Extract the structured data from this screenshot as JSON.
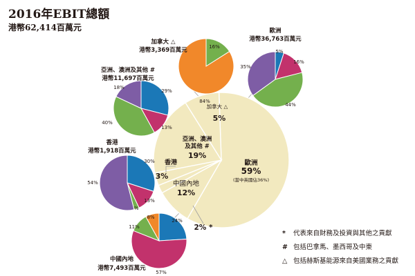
{
  "header": {
    "title": "2016年EBIT總額",
    "subtitle": "港幣62,414百萬元"
  },
  "colors": {
    "cream": "#f2e9bf",
    "orange": "#f1882a",
    "green": "#74b04d",
    "blue": "#1b78b7",
    "purple": "#7e5da5",
    "magenta": "#c2326c",
    "gray_line": "#9f9f9f"
  },
  "chart_data": [
    {
      "type": "pie",
      "role": "main",
      "slices": [
        {
          "label": "歐洲",
          "value": 59,
          "value_label": "59%",
          "note": "(當中英國佔36%)",
          "color": "cream"
        },
        {
          "label": "中國內地",
          "value": 12,
          "value_label": "12%",
          "color": "cream"
        },
        {
          "label": "",
          "value": 2,
          "value_label": "2% *",
          "color": "cream"
        },
        {
          "label": "香港",
          "value": 3,
          "value_label": "3%",
          "color": "cream"
        },
        {
          "label": "亞洲、澳洲\n及其他 #",
          "value": 19,
          "value_label": "19%",
          "color": "cream"
        },
        {
          "label": "加拿大 △",
          "value": 5,
          "value_label": "5%",
          "color": "cream"
        }
      ]
    },
    {
      "type": "pie",
      "role": "region",
      "name": "加拿大 △",
      "total_label": "港幣3,369百萬元",
      "slices": [
        {
          "value": 16,
          "label": "16%",
          "color": "green"
        },
        {
          "value": 84,
          "label": "84%",
          "color": "orange"
        }
      ]
    },
    {
      "type": "pie",
      "role": "region",
      "name": "歐洲",
      "total_label": "港幣36,763百萬元",
      "slices": [
        {
          "value": 5,
          "label": "5%",
          "color": "blue"
        },
        {
          "value": 16,
          "label": "16%",
          "color": "magenta"
        },
        {
          "value": 44,
          "label": "44%",
          "color": "green"
        },
        {
          "value": 35,
          "label": "35%",
          "color": "purple"
        }
      ]
    },
    {
      "type": "pie",
      "role": "region",
      "name": "亞洲、澳洲及其他 #",
      "total_label": "港幣11,697百萬元",
      "slices": [
        {
          "value": 29,
          "label": "29%",
          "color": "blue"
        },
        {
          "value": 13,
          "label": "13%",
          "color": "magenta"
        },
        {
          "value": 40,
          "label": "40%",
          "color": "green"
        },
        {
          "value": 18,
          "label": "18%",
          "color": "purple"
        }
      ]
    },
    {
      "type": "pie",
      "role": "region",
      "name": "香港",
      "total_label": "港幣1,918百萬元",
      "slices": [
        {
          "value": 30,
          "label": "30%",
          "color": "blue"
        },
        {
          "value": 13,
          "label": "13%",
          "color": "magenta"
        },
        {
          "value": 3,
          "label": "3%",
          "color": "green"
        },
        {
          "value": 54,
          "label": "54%",
          "color": "purple"
        }
      ]
    },
    {
      "type": "pie",
      "role": "region",
      "name": "中國內地",
      "total_label": "港幣7,493百萬元",
      "slices": [
        {
          "value": 24,
          "label": "24%",
          "color": "blue"
        },
        {
          "value": 57,
          "label": "57%",
          "color": "magenta"
        },
        {
          "value": 11,
          "label": "11%",
          "color": "green"
        },
        {
          "value": 8,
          "label": "8%",
          "color": "orange"
        }
      ]
    }
  ],
  "legend": [
    {
      "symbol": "*",
      "text": "代表來自財務及投資與其他之貢獻"
    },
    {
      "symbol": "#",
      "text": "包括巴拿馬、墨西哥及中東"
    },
    {
      "symbol": "△",
      "text": "包括赫斯基能源來自美國業務之貢獻"
    }
  ]
}
